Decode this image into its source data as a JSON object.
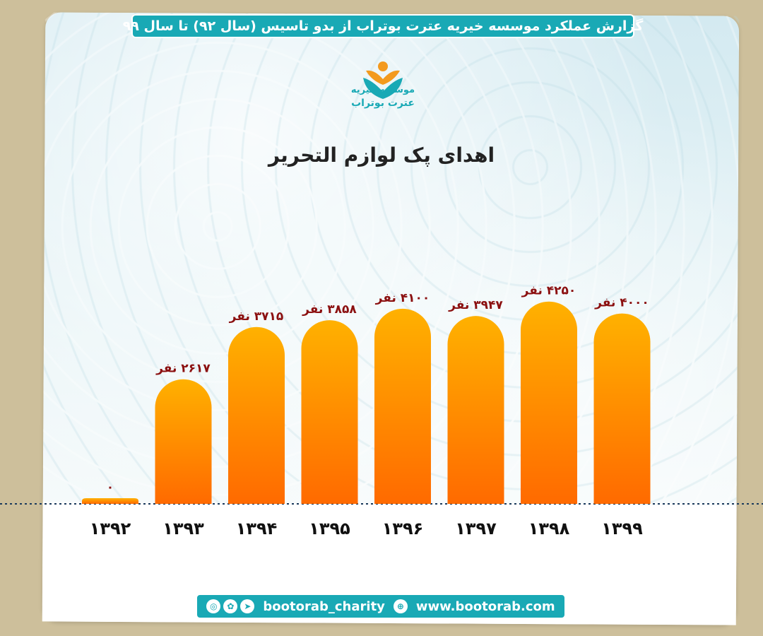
{
  "header": {
    "title": "گزارش عملکرد موسسه خیریه عترت بوتراب از بدو تاسیس (سال ۹۲) تا سال ۹۹"
  },
  "logo": {
    "name": "موسسه خیریه",
    "sub": "عترت بوتراب"
  },
  "footer": {
    "handle": "bootorab_charity",
    "website": "www.bootorab.com",
    "icons": [
      "instagram-icon",
      "aparat-icon",
      "telegram-icon",
      "globe-icon"
    ]
  },
  "colors": {
    "accent": "#19a9b5",
    "bar_top": "#ffb100",
    "bar_bottom": "#ff6a00",
    "value_label": "#8b1010"
  },
  "chart_data": {
    "type": "bar",
    "title": "اهدای پک لوازم التحریر",
    "categories": [
      "۱۳۹۲",
      "۱۳۹۳",
      "۱۳۹۴",
      "۱۳۹۵",
      "۱۳۹۶",
      "۱۳۹۷",
      "۱۳۹۸",
      "۱۳۹۹"
    ],
    "values": [
      0,
      2617,
      3715,
      3858,
      4100,
      3947,
      4250,
      4000
    ],
    "value_labels": [
      "۰",
      "۲۶۱۷ نفر",
      "۳۷۱۵ نفر",
      "۳۸۵۸ نفر",
      "۴۱۰۰ نفر",
      "۳۹۴۷ نفر",
      "۴۲۵۰ نفر",
      "۴۰۰۰ نفر"
    ],
    "ylim": [
      0,
      4350
    ],
    "grid": false,
    "legend": "none"
  }
}
